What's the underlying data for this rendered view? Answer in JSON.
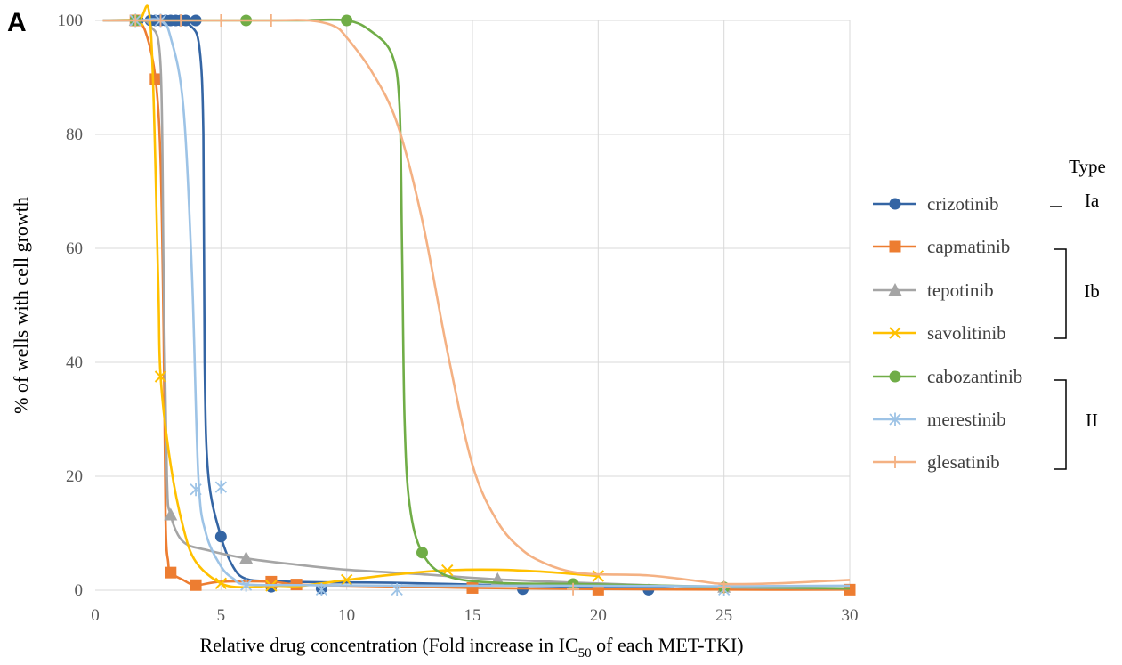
{
  "panel_label": "A",
  "chart_data": {
    "type": "line",
    "xlabel": "Relative drug concentration  (Fold increase in IC50 of each MET-TKI)",
    "xlabel_parts": {
      "main": "Relative drug concentration  (Fold increase in IC",
      "sub": "50",
      "tail": " of each MET-TKI)"
    },
    "ylabel": "% of wells with cell growth",
    "xlim": [
      0,
      30
    ],
    "ylim": [
      0,
      100
    ],
    "x_ticks": [
      "0",
      "5",
      "10",
      "15",
      "20",
      "25",
      "30"
    ],
    "y_ticks": [
      "0",
      "20",
      "40",
      "60",
      "80",
      "100"
    ],
    "grid": true,
    "legend_position": "right",
    "legend_title": "Type",
    "type_groups": [
      {
        "label": "Ia",
        "members": [
          "crizotinib"
        ]
      },
      {
        "label": "Ib",
        "members": [
          "capmatinib",
          "tepotinib",
          "savolitinib"
        ]
      },
      {
        "label": "II",
        "members": [
          "cabozantinib",
          "merestinib",
          "glesatinib"
        ]
      }
    ],
    "series": [
      {
        "name": "crizotinib",
        "color": "#3465a4",
        "marker": "circle",
        "points": [
          [
            1.7,
            100
          ],
          [
            2.2,
            100
          ],
          [
            2.4,
            100
          ],
          [
            2.6,
            100
          ],
          [
            2.8,
            100
          ],
          [
            3.0,
            100
          ],
          [
            3.2,
            100
          ],
          [
            3.4,
            100
          ],
          [
            3.6,
            100
          ],
          [
            4.0,
            100
          ],
          [
            5.0,
            9.4
          ],
          [
            7.0,
            0.6
          ],
          [
            9.0,
            0.3
          ],
          [
            17.0,
            0.2
          ],
          [
            22.0,
            0.1
          ]
        ],
        "curve": [
          [
            0.5,
            100
          ],
          [
            1.7,
            100
          ],
          [
            3.0,
            100
          ],
          [
            3.8,
            99
          ],
          [
            4.15,
            95
          ],
          [
            4.3,
            80
          ],
          [
            4.35,
            40
          ],
          [
            4.5,
            20
          ],
          [
            5.0,
            9.4
          ],
          [
            5.5,
            4
          ],
          [
            6.0,
            2
          ],
          [
            7.0,
            1.6
          ],
          [
            9.0,
            1.4
          ],
          [
            12.0,
            1.3
          ],
          [
            17.0,
            0.8
          ],
          [
            22.0,
            0.4
          ],
          [
            23.0,
            0.3
          ]
        ]
      },
      {
        "name": "capmatinib",
        "color": "#ed7d31",
        "marker": "square",
        "points": [
          [
            1.6,
            100
          ],
          [
            2.4,
            89.7
          ],
          [
            3.0,
            3.1
          ],
          [
            4.0,
            0.9
          ],
          [
            7.0,
            1.5
          ],
          [
            8.0,
            1.0
          ],
          [
            15.0,
            0.4
          ],
          [
            20.0,
            0.1
          ],
          [
            30.0,
            0.1
          ]
        ],
        "curve": [
          [
            0.3,
            100
          ],
          [
            1.2,
            100
          ],
          [
            1.6,
            100
          ],
          [
            2.0,
            98
          ],
          [
            2.4,
            89.7
          ],
          [
            2.6,
            75
          ],
          [
            2.72,
            45
          ],
          [
            2.8,
            12
          ],
          [
            2.9,
            5
          ],
          [
            3.0,
            3.1
          ],
          [
            3.5,
            1.8
          ],
          [
            4.0,
            0.9
          ],
          [
            5.0,
            1.5
          ],
          [
            7.0,
            1.5
          ],
          [
            8.0,
            1.0
          ],
          [
            10.0,
            0.8
          ],
          [
            15.0,
            0.4
          ],
          [
            20.0,
            0.2
          ],
          [
            25.0,
            0.1
          ],
          [
            30.0,
            0.1
          ]
        ]
      },
      {
        "name": "tepotinib",
        "color": "#a5a5a5",
        "marker": "triangle",
        "points": [
          [
            1.6,
            100
          ],
          [
            3.0,
            13.2
          ],
          [
            6.0,
            5.6
          ],
          [
            16.0,
            1.9
          ],
          [
            25.0,
            0.5
          ]
        ],
        "curve": [
          [
            0.3,
            100
          ],
          [
            1.6,
            100
          ],
          [
            2.2,
            99
          ],
          [
            2.6,
            92
          ],
          [
            2.72,
            55
          ],
          [
            2.85,
            20
          ],
          [
            3.0,
            13.2
          ],
          [
            3.5,
            8.5
          ],
          [
            4.5,
            7
          ],
          [
            6.0,
            5.6
          ],
          [
            8.0,
            4.5
          ],
          [
            10.0,
            3.6
          ],
          [
            13.0,
            2.8
          ],
          [
            16.0,
            1.9
          ],
          [
            20.0,
            1.2
          ],
          [
            25.0,
            0.5
          ],
          [
            30.0,
            0.3
          ]
        ]
      },
      {
        "name": "savolitinib",
        "color": "#ffc000",
        "marker": "x",
        "points": [
          [
            1.7,
            100
          ],
          [
            2.6,
            37.5
          ],
          [
            5.0,
            1.2
          ],
          [
            7.0,
            0.8
          ],
          [
            10.0,
            1.8
          ],
          [
            14.0,
            3.5
          ],
          [
            20.0,
            2.5
          ]
        ],
        "curve": [
          [
            0.5,
            100
          ],
          [
            1.7,
            100
          ],
          [
            2.2,
            99
          ],
          [
            2.5,
            55
          ],
          [
            2.6,
            37.5
          ],
          [
            3.0,
            22
          ],
          [
            3.5,
            11
          ],
          [
            4.0,
            5
          ],
          [
            5.0,
            1.2
          ],
          [
            6.0,
            0.5
          ],
          [
            7.0,
            0.8
          ],
          [
            8.0,
            0.7
          ],
          [
            9.0,
            1.2
          ],
          [
            10.0,
            1.8
          ],
          [
            12.0,
            2.8
          ],
          [
            14.0,
            3.5
          ],
          [
            16.0,
            3.6
          ],
          [
            18.0,
            3.2
          ],
          [
            20.0,
            2.5
          ]
        ]
      },
      {
        "name": "cabozantinib",
        "color": "#70ad47",
        "marker": "circle",
        "points": [
          [
            1.6,
            100
          ],
          [
            6.0,
            100
          ],
          [
            10.0,
            100
          ],
          [
            13.0,
            6.6
          ],
          [
            19.0,
            1.1
          ],
          [
            25.0,
            0.5
          ]
        ],
        "curve": [
          [
            0.3,
            100
          ],
          [
            1.6,
            100
          ],
          [
            4.0,
            100
          ],
          [
            6.0,
            100
          ],
          [
            8.0,
            100
          ],
          [
            10.0,
            100
          ],
          [
            11.0,
            98
          ],
          [
            11.8,
            94
          ],
          [
            12.1,
            85
          ],
          [
            12.2,
            60
          ],
          [
            12.3,
            30
          ],
          [
            12.5,
            15
          ],
          [
            13.0,
            6.6
          ],
          [
            14.0,
            2.5
          ],
          [
            16.0,
            1.3
          ],
          [
            19.0,
            1.1
          ],
          [
            25.0,
            0.6
          ],
          [
            30.0,
            0.3
          ]
        ]
      },
      {
        "name": "merestinib",
        "color": "#9dc3e6",
        "marker": "asterisk",
        "points": [
          [
            1.6,
            100
          ],
          [
            2.6,
            100
          ],
          [
            4.0,
            17.7
          ],
          [
            5.0,
            18.1
          ],
          [
            6.0,
            0.9
          ],
          [
            9.0,
            0.1
          ],
          [
            12.0,
            0.1
          ],
          [
            25.0,
            0.1
          ]
        ],
        "curve": [
          [
            0.3,
            100
          ],
          [
            1.6,
            100
          ],
          [
            2.6,
            100
          ],
          [
            3.0,
            97
          ],
          [
            3.5,
            85
          ],
          [
            3.85,
            55
          ],
          [
            4.1,
            20
          ],
          [
            4.4,
            10
          ],
          [
            5.0,
            4.2
          ],
          [
            5.5,
            2
          ],
          [
            6.0,
            1.0
          ],
          [
            8.0,
            0.9
          ],
          [
            12.0,
            0.8
          ],
          [
            18.0,
            0.8
          ],
          [
            25.0,
            0.7
          ],
          [
            30.0,
            0.8
          ]
        ]
      },
      {
        "name": "glesatinib",
        "color": "#f4b183",
        "marker": "plus",
        "points": [
          [
            1.6,
            100
          ],
          [
            2.6,
            100
          ],
          [
            3.4,
            100
          ],
          [
            5.0,
            100
          ],
          [
            7.0,
            100
          ],
          [
            19.0,
            0.2
          ],
          [
            25.0,
            0.5
          ]
        ],
        "curve": [
          [
            0.3,
            100
          ],
          [
            1.6,
            100
          ],
          [
            5.0,
            100
          ],
          [
            7.0,
            100
          ],
          [
            8.5,
            100
          ],
          [
            9.5,
            99
          ],
          [
            10.0,
            97
          ],
          [
            11.0,
            91
          ],
          [
            12.0,
            82
          ],
          [
            13.0,
            65
          ],
          [
            14.0,
            42
          ],
          [
            15.0,
            22
          ],
          [
            16.0,
            12
          ],
          [
            17.0,
            7
          ],
          [
            18.0,
            4.5
          ],
          [
            19.0,
            3.2
          ],
          [
            20.0,
            2.8
          ],
          [
            22.0,
            2.6
          ],
          [
            24.0,
            1.6
          ],
          [
            25.0,
            1.1
          ],
          [
            27.0,
            1.2
          ],
          [
            29.0,
            1.6
          ],
          [
            30.0,
            1.8
          ]
        ]
      }
    ]
  }
}
